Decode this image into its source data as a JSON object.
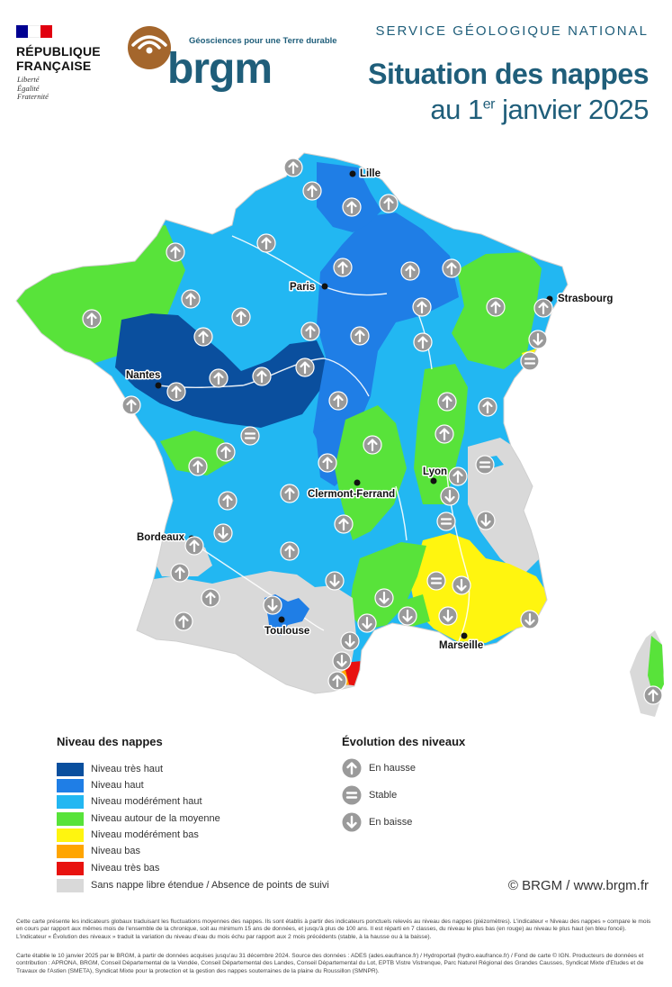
{
  "header": {
    "republique": [
      "RÉPUBLIQUE",
      "FRANÇAISE"
    ],
    "motto": [
      "Liberté",
      "Égalité",
      "Fraternité"
    ],
    "brgm_tagline": "Géosciences pour une Terre durable",
    "brgm_name": "brgm",
    "service": "SERVICE GÉOLOGIQUE NATIONAL",
    "title_line1": "Situation des nappes",
    "title_line2_pre": "au 1",
    "title_line2_sup": "er",
    "title_line2_post": " janvier 2025"
  },
  "map": {
    "cities": [
      "Lille",
      "Paris",
      "Strasbourg",
      "Nantes",
      "Lyon",
      "Clermont-Ferrand",
      "Bordeaux",
      "Toulouse",
      "Marseille"
    ]
  },
  "legend_levels": {
    "title": "Niveau des nappes",
    "items": [
      {
        "label": "Niveau très haut",
        "color": "#0a4f9e"
      },
      {
        "label": "Niveau haut",
        "color": "#1f7ee6"
      },
      {
        "label": "Niveau modérément haut",
        "color": "#22b7f2"
      },
      {
        "label": "Niveau autour de la moyenne",
        "color": "#58e33a"
      },
      {
        "label": "Niveau modérément bas",
        "color": "#fff50f"
      },
      {
        "label": "Niveau bas",
        "color": "#ffa500"
      },
      {
        "label": "Niveau très bas",
        "color": "#e8120f"
      },
      {
        "label": "Sans nappe libre étendue / Absence de points de suivi",
        "color": "#d9d9d9"
      }
    ]
  },
  "legend_evolution": {
    "title": "Évolution des niveaux",
    "items": [
      {
        "label": "En hausse",
        "icon": "arrow-up-icon"
      },
      {
        "label": "Stable",
        "icon": "equal-icon"
      },
      {
        "label": "En baisse",
        "icon": "arrow-down-icon"
      }
    ]
  },
  "copyright": "© BRGM / www.brgm.fr",
  "footnote1": "Cette carte présente les indicateurs globaux traduisant les fluctuations moyennes des nappes. Ils sont établis à partir des indicateurs ponctuels relevés au niveau des nappes (piézomètres). L'indicateur « Niveau des nappes » compare le mois en cours par rapport aux mêmes mois de l'ensemble de la chronique, soit au minimum 15 ans de données, et jusqu'à plus de 100 ans. Il est réparti en 7 classes, du niveau le plus bas (en rouge) au niveau le plus haut (en bleu foncé). L'indicateur « Évolution des niveaux » traduit la variation du niveau d'eau du mois échu par rapport aux 2 mois précédents (stable, à la hausse ou à la baisse).",
  "footnote2": "Carte établie le 10 janvier 2025 par le BRGM, à partir de données acquises jusqu'au 31 décembre 2024. Source des données : ADES (ades.eaufrance.fr) / Hydroportail (hydro.eaufrance.fr) / Fond de carte © IGN. Producteurs de données et contribution : APRONA, BRGM, Conseil Départemental de la Vendée, Conseil Départemental des Landes, Conseil Départemental du Lot, EPTB Vistre Vistrenque, Parc Naturel Régional des Grandes Causses, Syndicat Mixte d'Etudes et de Travaux de l'Astien (SMETA), Syndicat Mixte pour la protection et la gestion des nappes souterraines de la plaine du Roussillon (SMNPR)."
}
